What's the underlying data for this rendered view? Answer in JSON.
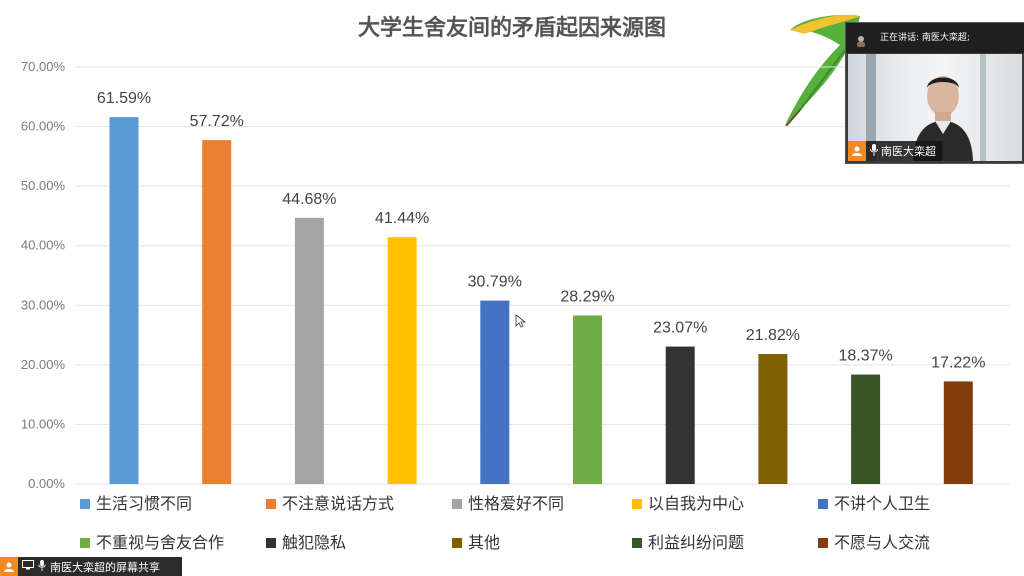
{
  "slide": {
    "title": "大学生舍友间的矛盾起因来源图"
  },
  "chart_data": {
    "type": "bar",
    "title": "大学生舍友间的矛盾起因来源图",
    "categories": [
      "生活习惯不同",
      "不注意说话方式",
      "性格爱好不同",
      "以自我为中心",
      "不讲个人卫生",
      "不重视与舍友合作",
      "触犯隐私",
      "其他",
      "利益纠纷问题",
      "不愿与人交流"
    ],
    "values": [
      61.59,
      57.72,
      44.68,
      41.44,
      30.79,
      28.29,
      23.07,
      21.82,
      18.37,
      17.22
    ],
    "value_labels": [
      "61.59%",
      "57.72%",
      "44.68%",
      "41.44%",
      "30.79%",
      "28.29%",
      "23.07%",
      "21.82%",
      "18.37%",
      "17.22%"
    ],
    "colors": [
      "#5b9bd5",
      "#ed7d31",
      "#a5a5a5",
      "#ffc000",
      "#4472c4",
      "#70ad47",
      "#333333",
      "#7f6000",
      "#375623",
      "#843c0c"
    ],
    "yticks": [
      "0.00%",
      "10.00%",
      "20.00%",
      "30.00%",
      "40.00%",
      "50.00%",
      "60.00%",
      "70.00%"
    ],
    "ylim": [
      0,
      70
    ],
    "xlabel": "",
    "ylabel": "",
    "grid": true,
    "legend_position": "bottom"
  },
  "video": {
    "speaking_text": "正在讲话: 南医大栾超;",
    "name_tag": "南医大栾超"
  },
  "share_bar": {
    "label": "南医大栾超的屏幕共享"
  },
  "icons": {
    "speaker_mic": "mic-icon",
    "user": "user-icon",
    "screen_share": "screen-share-icon",
    "logo": "ginkgo-leaf-logo"
  }
}
